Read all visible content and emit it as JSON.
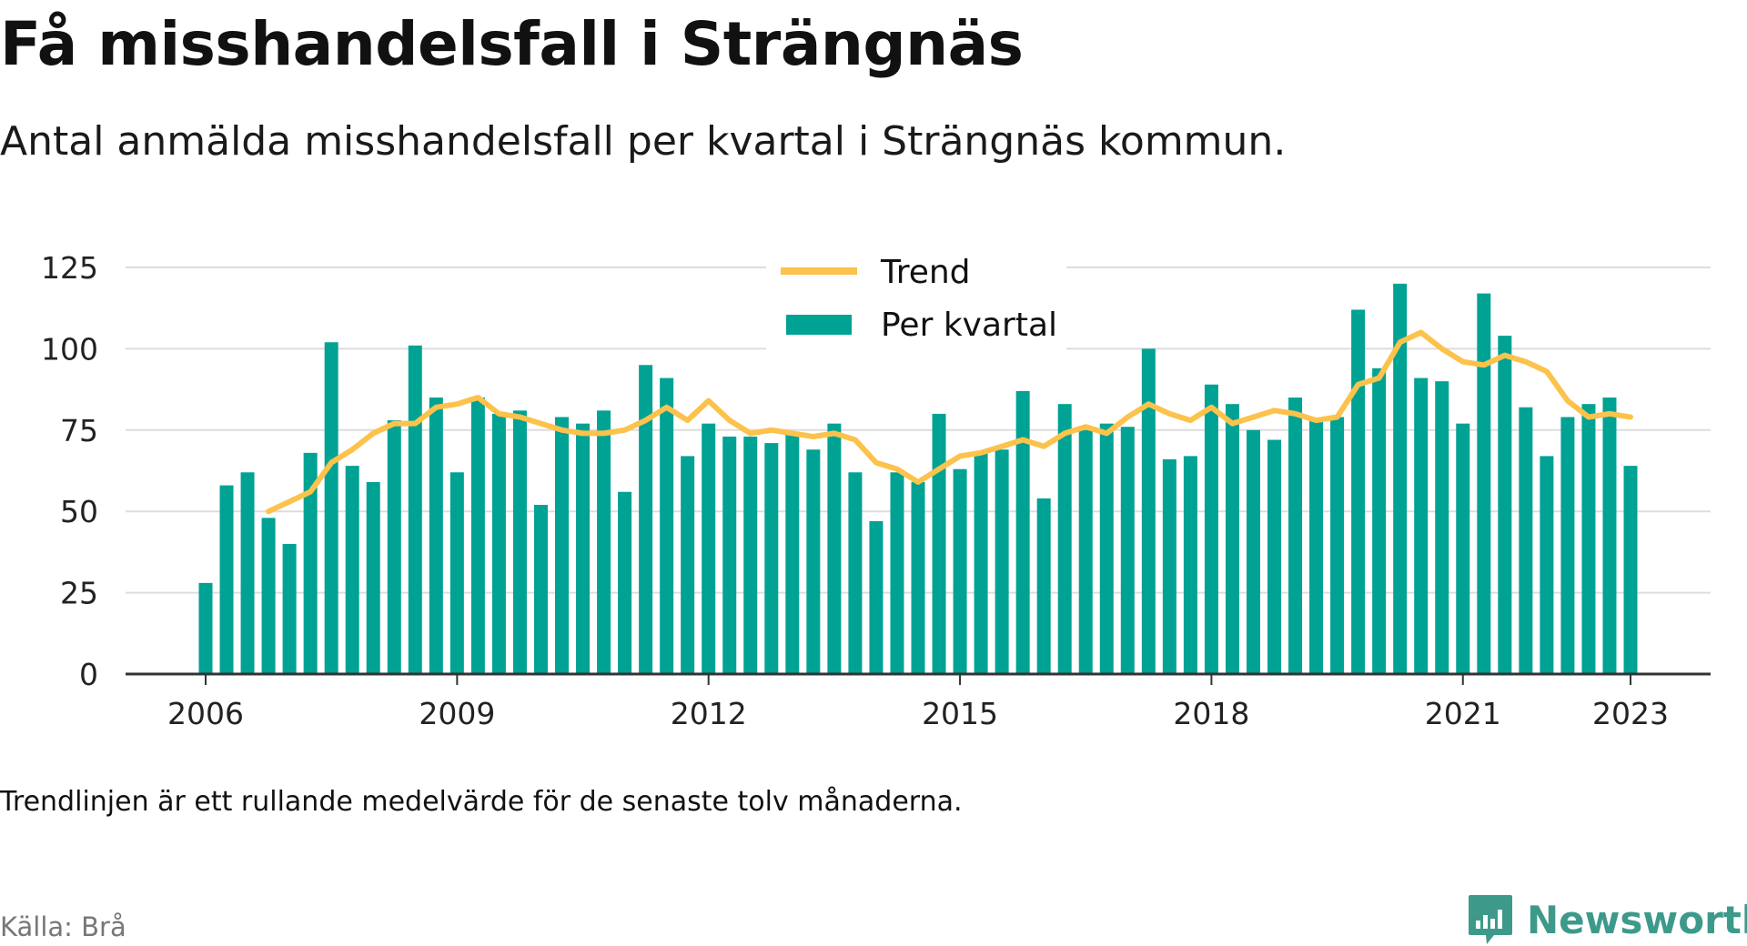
{
  "title": "Få misshandelsfall i Strängnäs",
  "subtitle": "Antal anmälda misshandelsfall per kvartal i Strängnäs kommun.",
  "note": "Trendlinjen är ett rullande medelvärde för de senaste tolv månaderna.",
  "source": "Källa: Brå",
  "brand": {
    "name": "Newsworthy",
    "color": "#3d9a8b"
  },
  "chart_data": {
    "type": "bar",
    "title": "Få misshandelsfall i Strängnäs",
    "subtitle": "Antal anmälda misshandelsfall per kvartal i Strängnäs kommun.",
    "xlabel": "",
    "ylabel": "",
    "ylim": [
      0,
      125
    ],
    "xlim": [
      2006,
      2023.75
    ],
    "yticks": [
      0,
      25,
      50,
      75,
      100,
      125
    ],
    "xticks": [
      "2006",
      "2009",
      "2012",
      "2015",
      "2018",
      "2021",
      "2023"
    ],
    "grid": true,
    "legend_position": "top-center",
    "colors": {
      "bar": "#00a294",
      "trend": "#fcc24b",
      "grid": "#dddddd",
      "axis": "#333333"
    },
    "legend": [
      "Trend",
      "Per kvartal"
    ],
    "series": [
      {
        "name": "Per kvartal",
        "type": "bar",
        "x": [
          2006.0,
          2006.25,
          2006.5,
          2006.75,
          2007.0,
          2007.25,
          2007.5,
          2007.75,
          2008.0,
          2008.25,
          2008.5,
          2008.75,
          2009.0,
          2009.25,
          2009.5,
          2009.75,
          2010.0,
          2010.25,
          2010.5,
          2010.75,
          2011.0,
          2011.25,
          2011.5,
          2011.75,
          2012.0,
          2012.25,
          2012.5,
          2012.75,
          2013.0,
          2013.25,
          2013.5,
          2013.75,
          2014.0,
          2014.25,
          2014.5,
          2014.75,
          2015.0,
          2015.25,
          2015.5,
          2015.75,
          2016.0,
          2016.25,
          2016.5,
          2016.75,
          2017.0,
          2017.25,
          2017.5,
          2017.75,
          2018.0,
          2018.25,
          2018.5,
          2018.75,
          2019.0,
          2019.25,
          2019.5,
          2019.75,
          2020.0,
          2020.25,
          2020.5,
          2020.75,
          2021.0,
          2021.25,
          2021.5,
          2021.75,
          2022.0,
          2022.25,
          2022.5,
          2022.75,
          2023.0
        ],
        "values": [
          28,
          58,
          62,
          48,
          40,
          68,
          102,
          64,
          59,
          78,
          101,
          85,
          62,
          85,
          80,
          81,
          52,
          79,
          77,
          81,
          56,
          95,
          91,
          67,
          77,
          73,
          73,
          71,
          74,
          69,
          77,
          62,
          47,
          62,
          59,
          80,
          63,
          68,
          69,
          87,
          54,
          83,
          75,
          77,
          76,
          100,
          66,
          67,
          89,
          83,
          75,
          72,
          85,
          78,
          79,
          112,
          94,
          120,
          91,
          90,
          77,
          117,
          104,
          82,
          67,
          79,
          83,
          85,
          64
        ]
      },
      {
        "name": "Trend",
        "type": "line",
        "x": [
          2006.75,
          2007.0,
          2007.25,
          2007.5,
          2007.75,
          2008.0,
          2008.25,
          2008.5,
          2008.75,
          2009.0,
          2009.25,
          2009.5,
          2009.75,
          2010.0,
          2010.25,
          2010.5,
          2010.75,
          2011.0,
          2011.25,
          2011.5,
          2011.75,
          2012.0,
          2012.25,
          2012.5,
          2012.75,
          2013.0,
          2013.25,
          2013.5,
          2013.75,
          2014.0,
          2014.25,
          2014.5,
          2014.75,
          2015.0,
          2015.25,
          2015.5,
          2015.75,
          2016.0,
          2016.25,
          2016.5,
          2016.75,
          2017.0,
          2017.25,
          2017.5,
          2017.75,
          2018.0,
          2018.25,
          2018.5,
          2018.75,
          2019.0,
          2019.25,
          2019.5,
          2019.75,
          2020.0,
          2020.25,
          2020.5,
          2020.75,
          2021.0,
          2021.25,
          2021.5,
          2021.75,
          2022.0,
          2022.25,
          2022.5,
          2022.75,
          2023.0
        ],
        "values": [
          50,
          53,
          56,
          65,
          69,
          74,
          77,
          77,
          82,
          83,
          85,
          80,
          79,
          77,
          75,
          74,
          74,
          75,
          78,
          82,
          78,
          84,
          78,
          74,
          75,
          74,
          73,
          74,
          72,
          65,
          63,
          59,
          63,
          67,
          68,
          70,
          72,
          70,
          74,
          76,
          74,
          79,
          83,
          80,
          78,
          82,
          77,
          79,
          81,
          80,
          78,
          79,
          89,
          91,
          102,
          105,
          100,
          96,
          95,
          98,
          96,
          93,
          84,
          79,
          80,
          79
        ]
      }
    ]
  }
}
